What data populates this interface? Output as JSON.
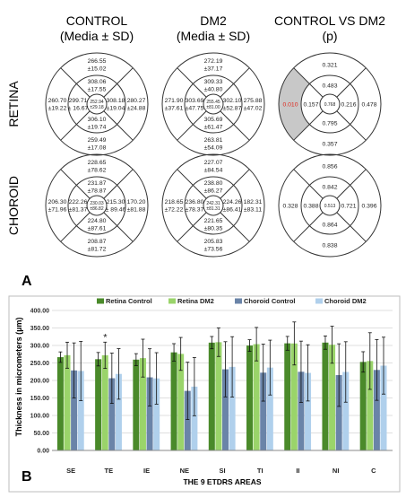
{
  "panel_a": {
    "label": "A",
    "col_headers": [
      {
        "line1": "CONTROL",
        "line2": "(Media ± SD)"
      },
      {
        "line1": "DM2",
        "line2": "(Media ± SD)"
      },
      {
        "line1": "CONTROL VS DM2",
        "line2": "(p)"
      }
    ],
    "row_labels": [
      "RETINA",
      "CHOROID"
    ],
    "highlight_color": "#c8c8c8",
    "highlight_text_color": "#e0281e",
    "highlight": {
      "row": 0,
      "col": 2,
      "sector": "left_outer"
    },
    "grids": [
      [
        {
          "top": [
            "266.55",
            "±15.02"
          ],
          "right_outer": [
            "280.27",
            "±24.88"
          ],
          "bottom_outer": [
            "259.49",
            "±17.08"
          ],
          "left_outer": [
            "260.70",
            "±19.22"
          ],
          "inner_top": [
            "308.06",
            "±17.55"
          ],
          "inner_right": [
            "308.18",
            "±19.04"
          ],
          "inner_bottom": [
            "306.10",
            "±19.74"
          ],
          "inner_left": [
            "299.71",
            "± 16.67"
          ],
          "center": [
            "252.94",
            "±29.18"
          ]
        },
        {
          "top": [
            "272.19",
            "±37.17"
          ],
          "right_outer": [
            "275.88",
            "±47.02"
          ],
          "bottom_outer": [
            "263.81",
            "±54.09"
          ],
          "left_outer": [
            "271.90",
            "±37.61"
          ],
          "inner_top": [
            "309.33",
            "±40.80"
          ],
          "inner_right": [
            "302.10",
            "±52.87"
          ],
          "inner_bottom": [
            "305.69",
            "±61.47"
          ],
          "inner_left": [
            "303.69",
            "±47.75"
          ],
          "center": [
            "255.45",
            "±81.00"
          ]
        },
        {
          "top": [
            "0.321"
          ],
          "right_outer": [
            "0.478"
          ],
          "bottom_outer": [
            "0.357"
          ],
          "left_outer": [
            "0.010"
          ],
          "inner_top": [
            "0.483"
          ],
          "inner_right": [
            "0.216"
          ],
          "inner_bottom": [
            "0.795"
          ],
          "inner_left": [
            "0.157"
          ],
          "center": [
            "0.768"
          ]
        }
      ],
      [
        {
          "top": [
            "228.65",
            "±78.62"
          ],
          "right_outer": [
            "170.20",
            "±81.88"
          ],
          "bottom_outer": [
            "208.87",
            "±81.72"
          ],
          "left_outer": [
            "206.30",
            "±71.96"
          ],
          "inner_top": [
            "231.87",
            "±78.87"
          ],
          "inner_right": [
            "215.30",
            "± 89.46"
          ],
          "inner_bottom": [
            "224.80",
            "±87.61"
          ],
          "inner_left": [
            "222.26",
            "±81.37"
          ],
          "center": [
            "230.03",
            "±86.82"
          ]
        },
        {
          "top": [
            "227.07",
            "±84.54"
          ],
          "right_outer": [
            "182.31",
            "±83.11"
          ],
          "bottom_outer": [
            "205.83",
            "±73.56"
          ],
          "left_outer": [
            "218.65",
            "±72.22"
          ],
          "inner_top": [
            "238.80",
            "±86.27"
          ],
          "inner_right": [
            "224.26",
            "±86.41"
          ],
          "inner_bottom": [
            "221.65",
            "±80.35"
          ],
          "inner_left": [
            "236.80",
            "±78.37"
          ],
          "center": [
            "242.31",
            "±81.31"
          ]
        },
        {
          "top": [
            "0.856"
          ],
          "right_outer": [
            "0.396"
          ],
          "bottom_outer": [
            "0.838"
          ],
          "left_outer": [
            "0.328"
          ],
          "inner_top": [
            "0.842"
          ],
          "inner_right": [
            "0.721"
          ],
          "inner_bottom": [
            "0.864"
          ],
          "inner_left": [
            "0.388"
          ],
          "center": [
            "0.513"
          ]
        }
      ]
    ]
  },
  "panel_b": {
    "label": "B",
    "chart_data": {
      "type": "bar",
      "categories": [
        "SE",
        "TE",
        "IE",
        "NE",
        "SI",
        "TI",
        "II",
        "NI",
        "C"
      ],
      "xlabel": "THE 9 ETDRS AREAS",
      "ylabel": "Thickness in micrometers (µm)",
      "ylim": [
        0,
        400
      ],
      "yticks": [
        "0.00",
        "50.00",
        "100.00",
        "150.00",
        "200.00",
        "250.00",
        "300.00",
        "350.00",
        "400.00"
      ],
      "grid": true,
      "legend_position": "top",
      "series": [
        {
          "name": "Retina Control",
          "color": "#4a8a2a",
          "values": [
            266.55,
            260.7,
            259.49,
            280.27,
            308.06,
            299.71,
            306.1,
            308.18,
            252.94
          ],
          "errors": [
            15.02,
            19.22,
            17.08,
            24.88,
            17.55,
            16.67,
            19.74,
            19.04,
            29.18
          ]
        },
        {
          "name": "Retina DM2",
          "color": "#9ad46a",
          "values": [
            272.19,
            271.9,
            263.81,
            275.88,
            309.33,
            303.69,
            305.69,
            302.1,
            255.45
          ],
          "errors": [
            37.17,
            37.61,
            54.09,
            47.02,
            40.8,
            47.75,
            61.47,
            52.87,
            81.0
          ]
        },
        {
          "name": "Choroid Control",
          "color": "#6a84a8",
          "values": [
            228.65,
            206.3,
            208.87,
            170.2,
            231.87,
            222.26,
            224.8,
            215.3,
            230.03
          ],
          "errors": [
            78.62,
            71.96,
            81.72,
            81.88,
            78.87,
            81.37,
            87.61,
            89.46,
            86.82
          ]
        },
        {
          "name": "Choroid DM2",
          "color": "#b0d0ec",
          "values": [
            227.07,
            218.65,
            205.83,
            182.31,
            238.8,
            236.8,
            221.65,
            224.26,
            242.31
          ],
          "errors": [
            84.54,
            72.22,
            73.56,
            83.11,
            86.27,
            78.37,
            80.35,
            86.41,
            81.31
          ]
        }
      ],
      "annotations": [
        {
          "category": "TE",
          "text": "*"
        }
      ]
    }
  }
}
